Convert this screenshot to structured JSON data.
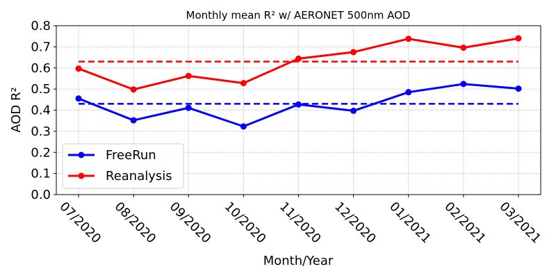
{
  "chart_data": {
    "type": "line",
    "title": "Monthly mean R² w/ AERONET 500nm AOD",
    "xlabel": "Month/Year",
    "ylabel": "AOD R²",
    "categories": [
      "07/2020",
      "08/2020",
      "09/2020",
      "10/2020",
      "11/2020",
      "12/2020",
      "01/2021",
      "02/2021",
      "03/2021"
    ],
    "ylim": [
      0.0,
      0.8
    ],
    "yticks": [
      "0.0",
      "0.1",
      "0.2",
      "0.3",
      "0.4",
      "0.5",
      "0.6",
      "0.7",
      "0.8"
    ],
    "grid": true,
    "legend_position": "lower-left",
    "series": [
      {
        "name": "FreeRun",
        "color": "#0000ff",
        "values": [
          0.455,
          0.352,
          0.411,
          0.323,
          0.427,
          0.397,
          0.485,
          0.524,
          0.502
        ],
        "mean": 0.43
      },
      {
        "name": "Reanalysis",
        "color": "#ff0000",
        "values": [
          0.597,
          0.498,
          0.562,
          0.528,
          0.644,
          0.675,
          0.738,
          0.696,
          0.74
        ],
        "mean": 0.63
      }
    ]
  }
}
